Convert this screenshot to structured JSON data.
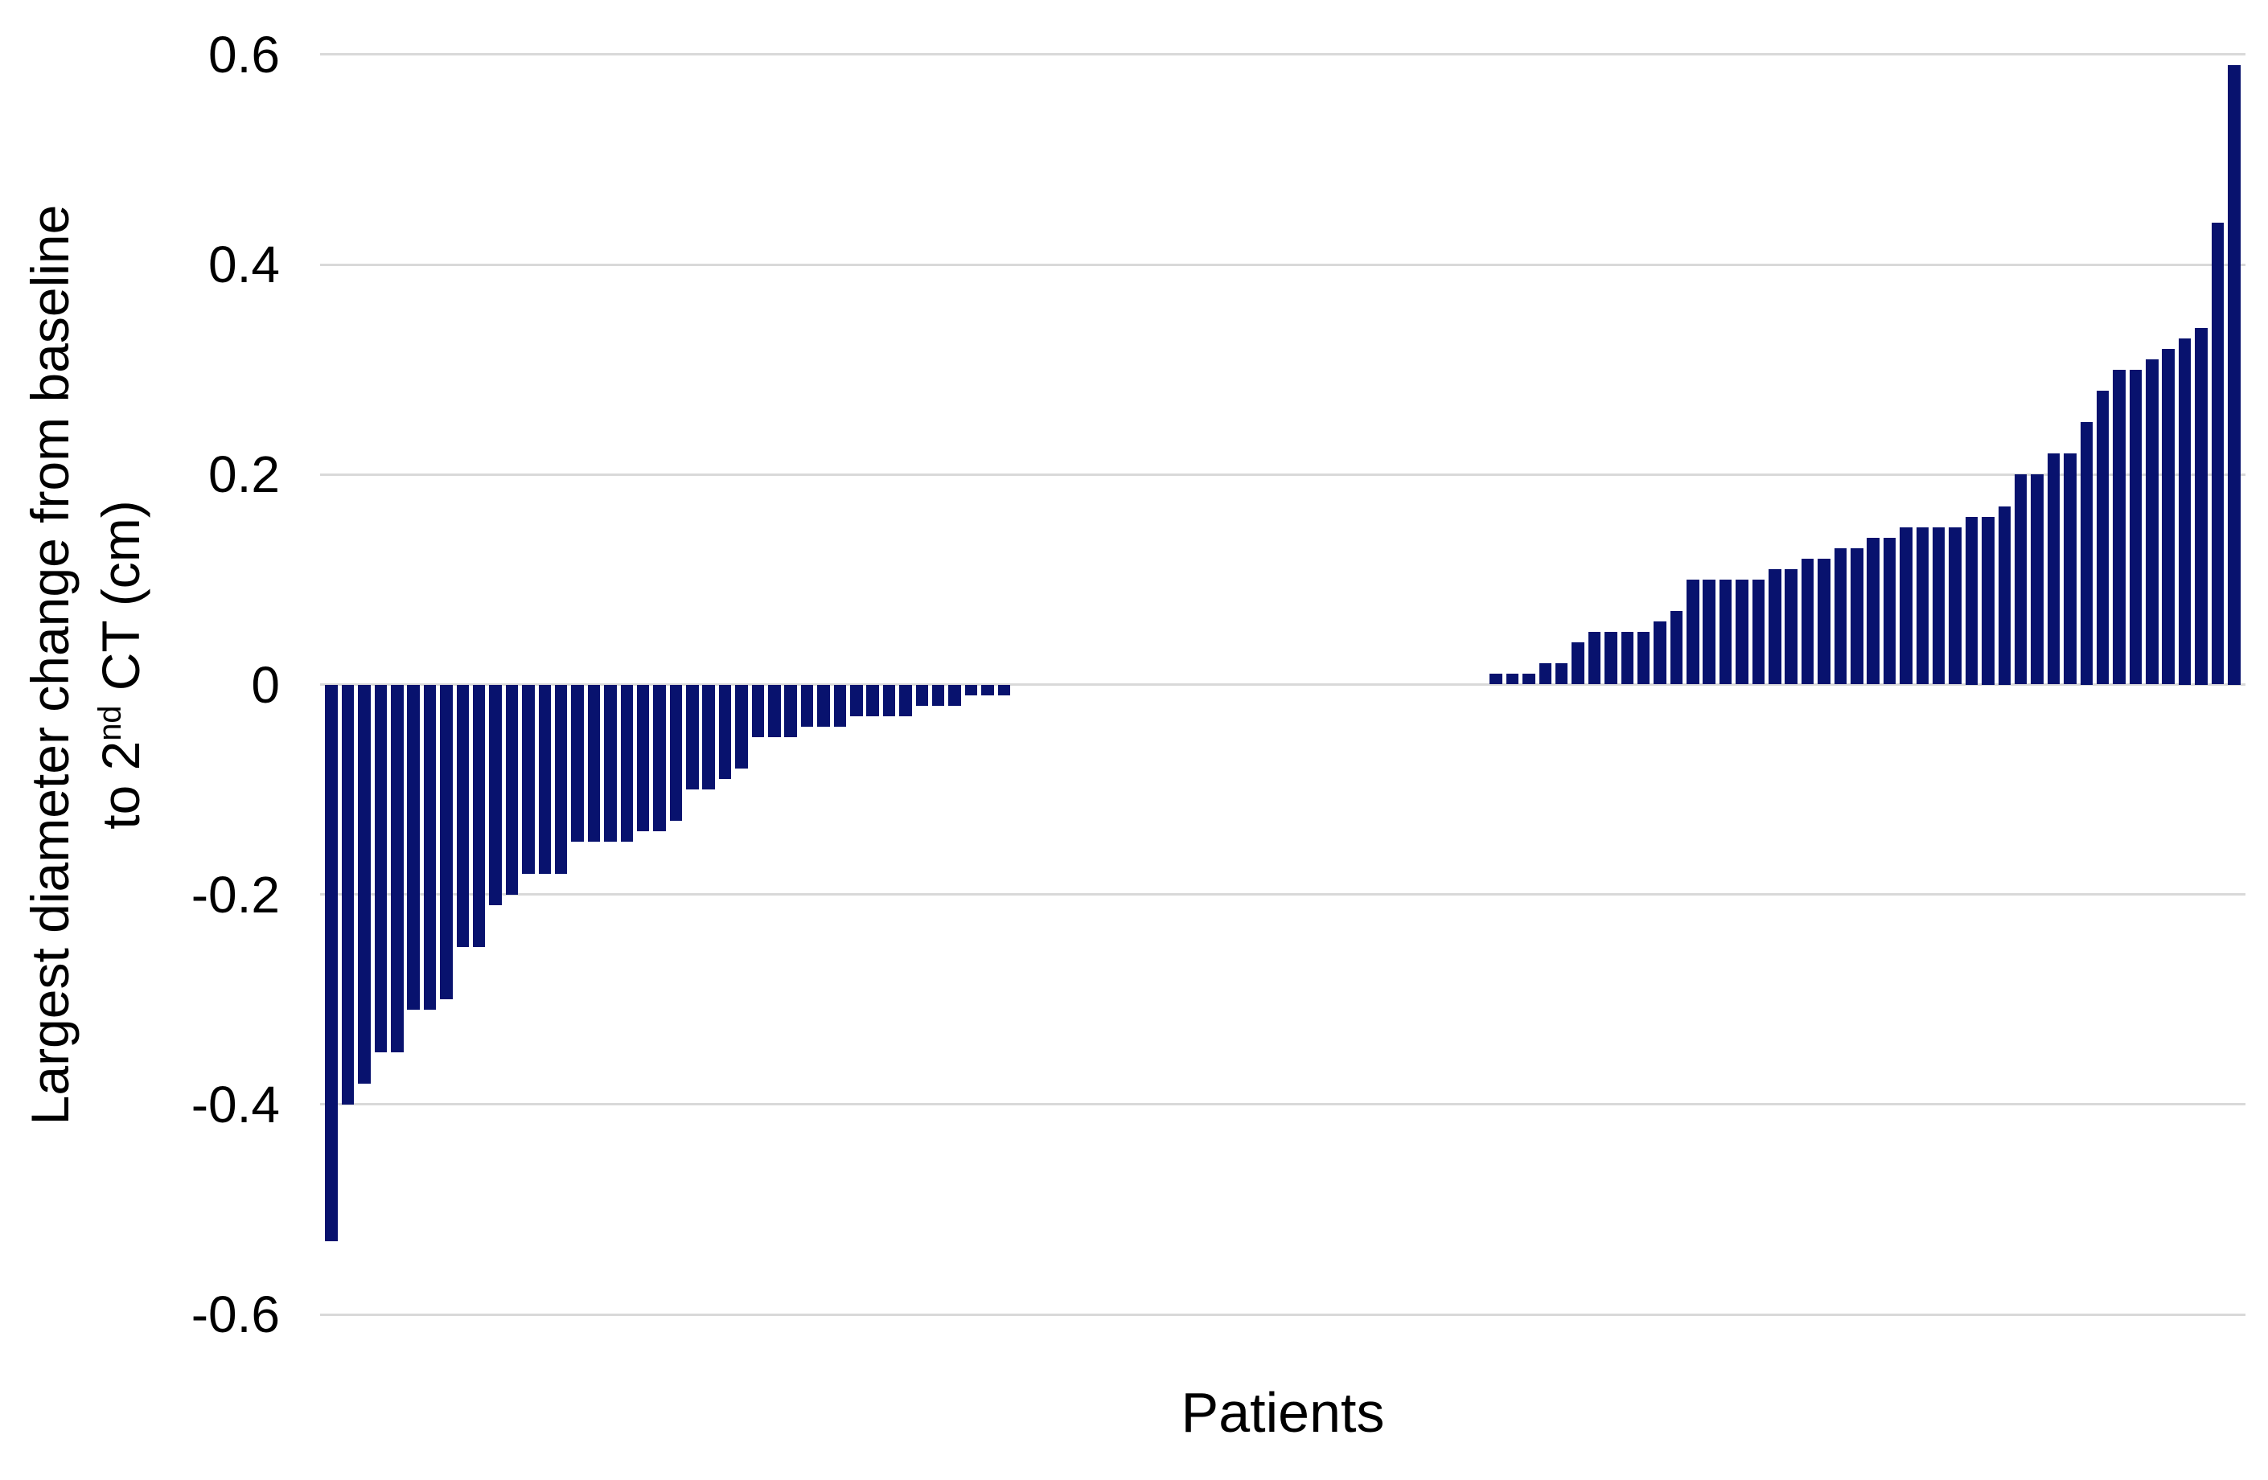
{
  "chart_data": {
    "type": "bar",
    "subtype": "waterfall",
    "title": "",
    "xlabel": "Patients",
    "ylabel": "Largest diameter change from baseline to 2nd CT (cm)",
    "ylabel_line1": "Largest diameter change from baseline",
    "ylabel_line2_pre": "to 2",
    "ylabel_line2_sup": "nd",
    "ylabel_line2_post": " CT (cm)",
    "ylim": [
      -0.6,
      0.6
    ],
    "yticks": [
      0.6,
      0.4,
      0.2,
      0,
      -0.2,
      -0.4,
      -0.6
    ],
    "ytick_labels": [
      "0.6",
      "0.4",
      "0.2",
      "0",
      "-0.2",
      "-0.4",
      "-0.6"
    ],
    "grid": true,
    "legend": false,
    "n_patients": 117,
    "bar_color": "#08126e",
    "gridline_color": "#d9d9d9",
    "text_color": "#000000",
    "values": [
      -0.53,
      -0.4,
      -0.38,
      -0.35,
      -0.35,
      -0.31,
      -0.31,
      -0.3,
      -0.25,
      -0.25,
      -0.21,
      -0.2,
      -0.18,
      -0.18,
      -0.18,
      -0.15,
      -0.15,
      -0.15,
      -0.15,
      -0.14,
      -0.14,
      -0.13,
      -0.1,
      -0.1,
      -0.09,
      -0.08,
      -0.05,
      -0.05,
      -0.05,
      -0.04,
      -0.04,
      -0.04,
      -0.03,
      -0.03,
      -0.03,
      -0.03,
      -0.02,
      -0.02,
      -0.02,
      -0.01,
      -0.01,
      -0.01,
      0,
      0,
      0,
      0,
      0,
      0,
      0,
      0,
      0,
      0,
      0,
      0,
      0,
      0,
      0,
      0,
      0,
      0,
      0,
      0,
      0,
      0,
      0,
      0,
      0,
      0,
      0,
      0,
      0,
      0.01,
      0.01,
      0.01,
      0.02,
      0.02,
      0.04,
      0.05,
      0.05,
      0.05,
      0.05,
      0.06,
      0.07,
      0.1,
      0.1,
      0.1,
      0.1,
      0.1,
      0.11,
      0.11,
      0.12,
      0.12,
      0.13,
      0.13,
      0.14,
      0.14,
      0.15,
      0.15,
      0.15,
      0.15,
      0.16,
      0.16,
      0.17,
      0.2,
      0.2,
      0.22,
      0.22,
      0.25,
      0.28,
      0.3,
      0.3,
      0.31,
      0.32,
      0.33,
      0.34,
      0.44,
      0.59
    ]
  }
}
